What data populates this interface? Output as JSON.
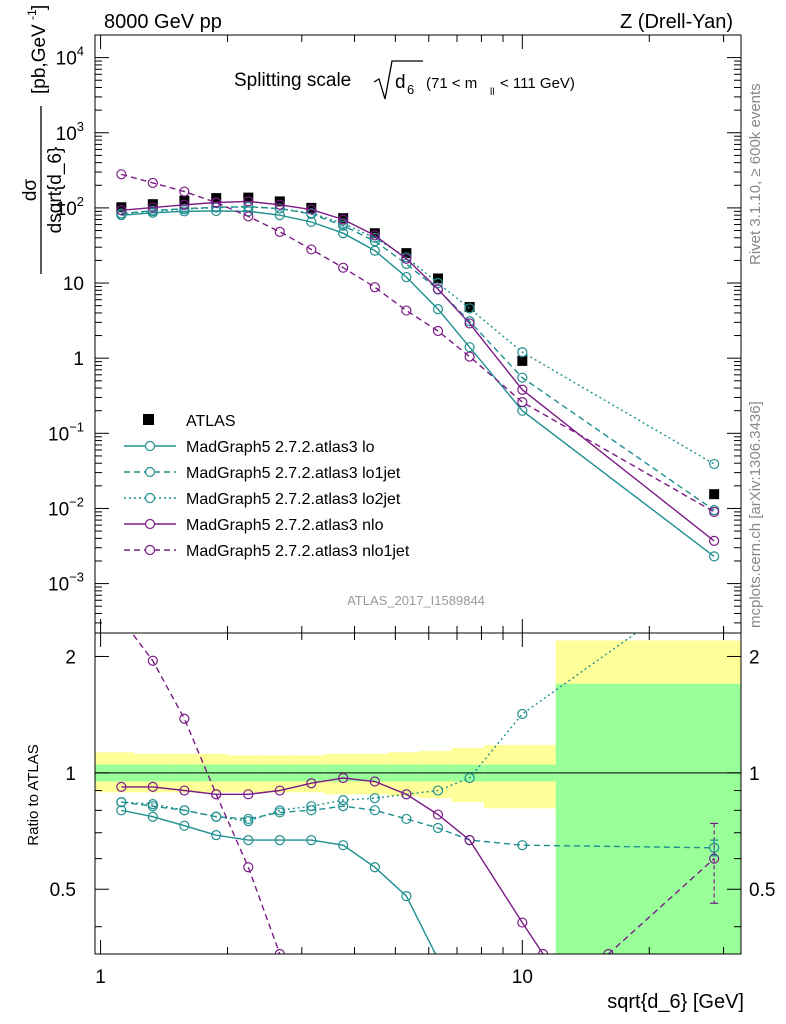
{
  "header": {
    "left": "8000 GeV pp",
    "right": "Z (Drell-Yan)"
  },
  "side_labels": {
    "rivet": "Rivet 3.1.10, ≥ 600k events",
    "mcplots": "mcplots.cern.ch [arXiv:1306.3436]"
  },
  "plot_title": {
    "main": "Splitting scale",
    "symbol": "d",
    "subscript": "6",
    "cut": "(71 < m",
    "cut_sub": "ll",
    "cut_end": " < 111 GeV)"
  },
  "watermark": "ATLAS_2017_I1589844",
  "ylabel_main": {
    "numerator": "dσ",
    "denominator": "dsqrt{d_6}",
    "unit": "[pb,GeV",
    "unit_sup": "-1",
    "unit_end": "]"
  },
  "ylabel_ratio": "Ratio to ATLAS",
  "xlabel": "sqrt{d_6} [GeV]",
  "colors": {
    "atlas": "#000000",
    "teal": "#1f8f8f",
    "purple": "#7b1b86",
    "band_yellow": "#ffff99",
    "band_green": "#99ff99"
  },
  "chart_data": [
    {
      "type": "scatter",
      "panel": "main",
      "xscale": "log",
      "yscale": "log",
      "xlim": [
        0.97,
        33
      ],
      "ylim": [
        0.00022,
        20000
      ],
      "x_tick_labels": [
        "1",
        "10"
      ],
      "y_tick_labels": [
        "10^-3",
        "10^-2",
        "10^-1",
        "1",
        "10",
        "10^2",
        "10^3",
        "10^4"
      ],
      "legend_position": "lower-left",
      "series": [
        {
          "name": "ATLAS",
          "color": "#000000",
          "marker": "filled-square",
          "x": [
            1.12,
            1.33,
            1.58,
            1.88,
            2.24,
            2.66,
            3.16,
            3.76,
            4.47,
            5.31,
            6.31,
            7.5,
            10.0,
            28.5
          ],
          "y": [
            102,
            112,
            125,
            135,
            137,
            122,
            100,
            73,
            46,
            25,
            11.5,
            4.8,
            0.92,
            0.0155
          ]
        },
        {
          "name": "MadGraph5 2.7.2.atlas3 lo",
          "color": "#1f8f8f",
          "style": "solid",
          "x": [
            1.12,
            1.33,
            1.58,
            1.88,
            2.24,
            2.66,
            3.16,
            3.76,
            4.47,
            5.31,
            6.31,
            7.5,
            10.0,
            28.5
          ],
          "y": [
            80,
            86,
            90,
            91,
            90,
            80,
            65,
            46,
            27,
            12,
            4.5,
            1.4,
            0.2,
            0.0023
          ]
        },
        {
          "name": "MadGraph5 2.7.2.atlas3 lo1jet",
          "color": "#1f8f8f",
          "style": "dashed",
          "x": [
            1.12,
            1.33,
            1.58,
            1.88,
            2.24,
            2.66,
            3.16,
            3.76,
            4.47,
            5.31,
            6.31,
            7.5,
            10.0,
            28.5
          ],
          "y": [
            84,
            92,
            98,
            102,
            104,
            98,
            83,
            58,
            36,
            18,
            8.2,
            3.1,
            0.55,
            0.0095
          ]
        },
        {
          "name": "MadGraph5 2.7.2.atlas3 lo2jet",
          "color": "#1f8f8f",
          "style": "dotted",
          "x": [
            1.12,
            1.33,
            1.58,
            1.88,
            2.24,
            2.66,
            3.16,
            3.76,
            4.47,
            5.31,
            6.31,
            7.5,
            10.0,
            28.5
          ],
          "y": [
            84,
            90,
            96,
            101,
            103,
            98,
            85,
            62,
            40,
            22,
            10,
            4.6,
            1.2,
            0.039
          ]
        },
        {
          "name": "MadGraph5 2.7.2.atlas3 nlo",
          "color": "#7b1b86",
          "style": "solid",
          "x": [
            1.12,
            1.33,
            1.58,
            1.88,
            2.24,
            2.66,
            3.16,
            3.76,
            4.47,
            5.31,
            6.31,
            7.5,
            10.0,
            28.5
          ],
          "y": [
            93,
            101,
            110,
            118,
            122,
            110,
            95,
            70,
            43,
            21,
            8.3,
            2.9,
            0.38,
            0.0037
          ]
        },
        {
          "name": "MadGraph5 2.7.2.atlas3 nlo1jet",
          "color": "#7b1b86",
          "style": "dashed",
          "x": [
            1.12,
            1.33,
            1.58,
            1.88,
            2.24,
            2.66,
            3.16,
            3.76,
            4.47,
            5.31,
            6.31,
            7.5,
            10.0,
            28.5
          ],
          "y": [
            280,
            215,
            165,
            118,
            77,
            48,
            28,
            16,
            8.8,
            4.3,
            2.3,
            1.05,
            0.26,
            0.009
          ]
        }
      ]
    },
    {
      "type": "line",
      "panel": "ratio",
      "xscale": "log",
      "xlim": [
        0.97,
        33
      ],
      "ylim": [
        0.34,
        2.3
      ],
      "y_tick_labels": [
        "0.5",
        "1",
        "2"
      ],
      "reference_line": 1,
      "bands": {
        "bin_edges": [
          0.97,
          1.2,
          1.45,
          1.7,
          2.0,
          2.4,
          2.9,
          3.4,
          4.0,
          4.8,
          5.7,
          6.8,
          8.1,
          12.0,
          33
        ],
        "yellow_lo": [
          0.89,
          0.89,
          0.89,
          0.89,
          0.89,
          0.89,
          0.89,
          0.88,
          0.88,
          0.87,
          0.86,
          0.84,
          0.81,
          0.4
        ],
        "yellow_hi": [
          1.13,
          1.12,
          1.12,
          1.12,
          1.11,
          1.11,
          1.11,
          1.12,
          1.12,
          1.13,
          1.14,
          1.16,
          1.18,
          2.2
        ],
        "green_lo": [
          0.95,
          0.95,
          0.95,
          0.95,
          0.95,
          0.95,
          0.95,
          0.95,
          0.95,
          0.95,
          0.95,
          0.95,
          0.95,
          0.3
        ],
        "green_hi": [
          1.05,
          1.05,
          1.05,
          1.05,
          1.05,
          1.05,
          1.05,
          1.05,
          1.05,
          1.05,
          1.05,
          1.05,
          1.05,
          1.7
        ]
      },
      "series": [
        {
          "name": "MadGraph5 2.7.2.atlas3 lo",
          "color": "#1f8f8f",
          "style": "solid",
          "x": [
            1.12,
            1.33,
            1.58,
            1.88,
            2.24,
            2.66,
            3.16,
            3.76,
            4.47,
            5.31,
            6.31
          ],
          "y": [
            0.8,
            0.77,
            0.73,
            0.69,
            0.67,
            0.67,
            0.67,
            0.65,
            0.57,
            0.48,
            0.33
          ]
        },
        {
          "name": "MadGraph5 2.7.2.atlas3 lo1jet",
          "color": "#1f8f8f",
          "style": "dashed",
          "x": [
            1.12,
            1.33,
            1.58,
            1.88,
            2.24,
            2.66,
            3.16,
            3.76,
            4.47,
            5.31,
            6.31,
            7.5,
            10.0,
            28.5
          ],
          "y": [
            0.84,
            0.82,
            0.8,
            0.77,
            0.76,
            0.79,
            0.8,
            0.82,
            0.8,
            0.76,
            0.72,
            0.67,
            0.65,
            0.64
          ]
        },
        {
          "name": "MadGraph5 2.7.2.atlas3 lo2jet",
          "color": "#1f8f8f",
          "style": "dotted",
          "x": [
            1.12,
            1.33,
            1.58,
            1.88,
            2.24,
            2.66,
            3.16,
            3.76,
            4.47,
            5.31,
            6.31,
            7.5,
            10.0,
            28.5
          ],
          "y": [
            0.84,
            0.83,
            0.8,
            0.77,
            0.75,
            0.8,
            0.82,
            0.85,
            0.86,
            0.88,
            0.9,
            0.97,
            1.42,
            3.2
          ]
        },
        {
          "name": "MadGraph5 2.7.2.atlas3 nlo",
          "color": "#7b1b86",
          "style": "solid",
          "x": [
            1.12,
            1.33,
            1.58,
            1.88,
            2.24,
            2.66,
            3.16,
            3.76,
            4.47,
            5.31,
            6.31,
            7.5,
            10.0,
            11.2
          ],
          "y": [
            0.92,
            0.92,
            0.9,
            0.88,
            0.88,
            0.9,
            0.94,
            0.97,
            0.95,
            0.88,
            0.78,
            0.67,
            0.41,
            0.34
          ]
        },
        {
          "name": "MadGraph5 2.7.2.atlas3 nlo1jet",
          "color": "#7b1b86",
          "style": "dashed",
          "x": [
            1.12,
            1.33,
            1.58,
            1.88,
            2.24,
            2.66
          ],
          "y": [
            2.5,
            1.95,
            1.38,
            0.88,
            0.57,
            0.34
          ]
        },
        {
          "name": "MadGraph5 2.7.2.atlas3 nlo1jet (tail)",
          "color": "#7b1b86",
          "style": "dashed",
          "x": [
            16.0,
            28.5
          ],
          "y": [
            0.34,
            0.6
          ]
        }
      ],
      "error_bars": [
        {
          "color": "#7b1b86",
          "x": 28.5,
          "y": 0.6,
          "lo": 0.46,
          "hi": 0.74
        },
        {
          "color": "#1f8f8f",
          "x": 28.5,
          "y": 0.64,
          "lo": 0.61,
          "hi": 0.67
        }
      ]
    }
  ]
}
